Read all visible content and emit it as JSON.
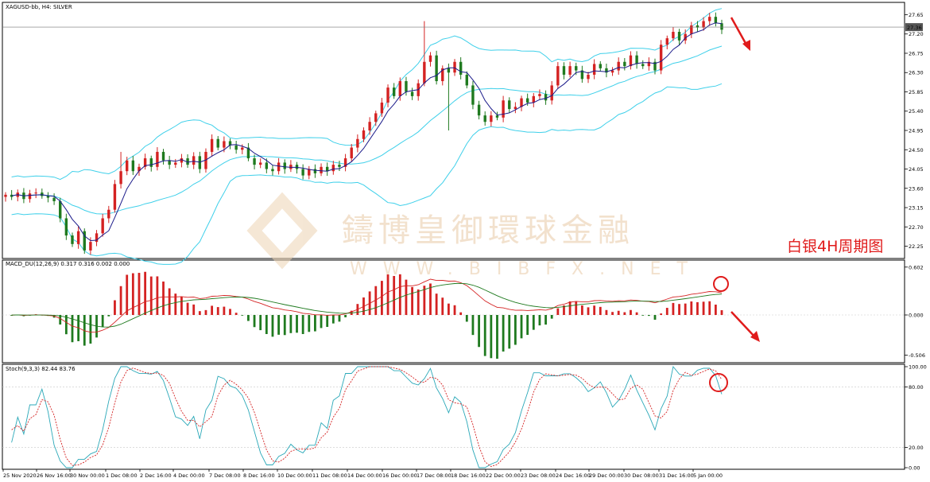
{
  "header": {
    "main_label": "XAGUSD-bb, H4:  SILVER",
    "macd_label": "MACD_DU(12,26,9) 0.317 0.316 0.002 0.000",
    "stoch_label": "Stoch(9,3,3) 82.44 83.76"
  },
  "annotation": {
    "text": "白银4H周期图",
    "color": "#e01b1b"
  },
  "watermark": {
    "text": "鑄博皇御環球金融",
    "subtext": "WWW.BIBFX.NET",
    "color": "#e8c9a6"
  },
  "price_badge": "27.36",
  "colors": {
    "bull": "#d42222",
    "bear": "#1f7a1f",
    "bands": "#3fd0ea",
    "ma": "#1a1a8a",
    "macd_fast": "#d42222",
    "macd_slow": "#1f7a1f",
    "stoch_main": "#2aa8b8",
    "stoch_signal": "#d42222",
    "arrow": "#e01b1b",
    "grid": "#c8c8c8"
  },
  "chart_data": [
    {
      "type": "candlestick",
      "title": "XAGUSD-bb, H4: SILVER",
      "y_ticks": [
        "27.65",
        "27.20",
        "26.75",
        "26.30",
        "25.85",
        "25.40",
        "24.95",
        "24.50",
        "24.05",
        "23.60",
        "23.15",
        "22.70",
        "22.25"
      ],
      "ylim": [
        22.0,
        27.9
      ],
      "x_ticks": [
        "25 Nov 2020",
        "26 Nov 16:00",
        "30 Nov 00:00",
        "1 Dec 08:00",
        "2 Dec 16:00",
        "4 Dec 00:00",
        "7 Dec 08:00",
        "8 Dec 16:00",
        "10 Dec 00:00",
        "11 Dec 08:00",
        "14 Dec 00:00",
        "16 Dec 00:00",
        "17 Dec 08:00",
        "18 Dec 16:00",
        "22 Dec 00:00",
        "23 Dec 08:00",
        "24 Dec 16:00",
        "29 Dec 00:00",
        "30 Dec 08:00",
        "31 Dec 16:00",
        "5 Jan 00:00"
      ],
      "close": [
        23.45,
        23.4,
        23.5,
        23.35,
        23.48,
        23.5,
        23.42,
        23.38,
        23.3,
        22.9,
        22.5,
        22.3,
        22.6,
        22.15,
        22.35,
        22.55,
        22.9,
        23.1,
        23.7,
        24,
        24.25,
        24,
        24.1,
        24.3,
        24.1,
        24.45,
        24.25,
        24.15,
        24.2,
        24.3,
        24.15,
        24.35,
        24.05,
        24.45,
        24.75,
        24.55,
        24.7,
        24.6,
        24.5,
        24.55,
        24.3,
        24.15,
        24.2,
        24.05,
        24,
        24.2,
        24.05,
        24.15,
        24.05,
        23.9,
        24.05,
        23.95,
        24.1,
        24,
        24.15,
        24.1,
        24.3,
        24.55,
        24.75,
        24.95,
        25.15,
        25.35,
        25.6,
        25.95,
        25.75,
        26.1,
        25.85,
        25.75,
        26.05,
        26.55,
        26.7,
        26.1,
        26.4,
        26.3,
        26.55,
        26.25,
        26,
        25.55,
        25.3,
        25.15,
        25.3,
        25.25,
        25.65,
        25.45,
        25.5,
        25.7,
        25.6,
        25.75,
        25.8,
        25.65,
        26,
        26.45,
        26.25,
        26.45,
        26.35,
        26.15,
        26.25,
        26.5,
        26.4,
        26.3,
        26.35,
        26.55,
        26.45,
        26.7,
        26.5,
        26.45,
        26.55,
        26.35,
        26.95,
        27.1,
        27.25,
        27.05,
        27.2,
        27.4,
        27.35,
        27.5,
        27.6,
        27.45,
        27.3
      ],
      "series": [
        {
          "name": "Bollinger Bands",
          "values": "upper/middle/lower envelope around price"
        },
        {
          "name": "Moving Average",
          "values": "short moving average of close"
        }
      ],
      "grid": true
    },
    {
      "type": "bar+line",
      "title": "MACD_DU(12,26,9) 0.317 0.316 0.002 0.000",
      "y_ticks": [
        "0.602",
        "0.000",
        "-0.506"
      ],
      "ylim": [
        -0.58,
        0.66
      ],
      "zero": 0.0
    },
    {
      "type": "line",
      "title": "Stoch(9,3,3) 82.44 83.76",
      "y_ticks": [
        "100.00",
        "80.00",
        "20.00",
        "0.00"
      ],
      "ylim": [
        0,
        100
      ],
      "levels": [
        80,
        20
      ]
    }
  ]
}
